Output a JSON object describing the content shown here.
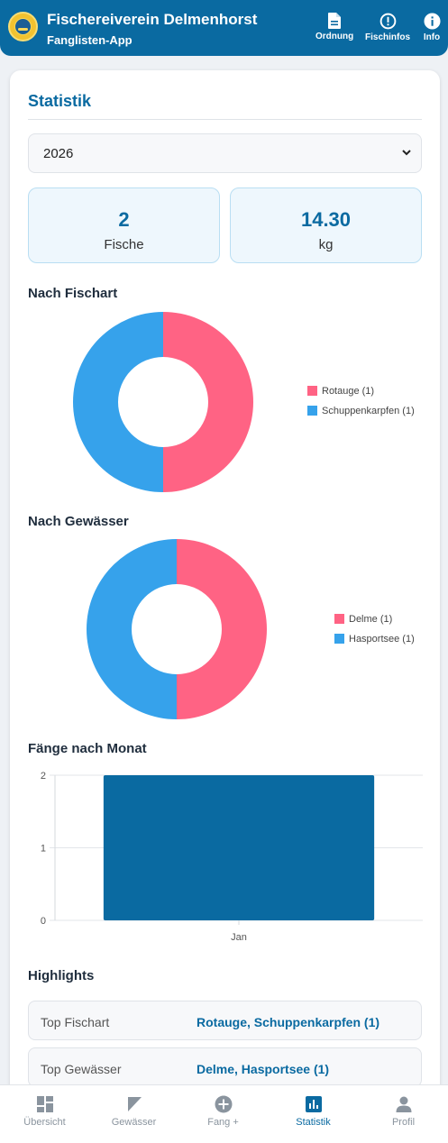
{
  "header": {
    "title": "Fischereiverein Delmenhorst",
    "subtitle": "Fanglisten-App",
    "actions": [
      {
        "label": "Ordnung",
        "icon": "document-icon"
      },
      {
        "label": "Fischinfos",
        "icon": "alert-circle-icon"
      },
      {
        "label": "Info",
        "icon": "info-icon"
      }
    ]
  },
  "statistik": {
    "title": "Statistik",
    "year": "2026",
    "stats": [
      {
        "value": "2",
        "label": "Fische"
      },
      {
        "value": "14.30",
        "label": "kg"
      }
    ]
  },
  "sections": {
    "species": "Nach Fischart",
    "waters": "Nach Gewässer",
    "monthly": "Fänge nach Monat",
    "highlights": "Highlights"
  },
  "chart_data": [
    {
      "type": "pie",
      "title": "Nach Fischart",
      "labels": [
        "Rotauge (1)",
        "Schuppenkarpfen (1)"
      ],
      "values": [
        1,
        1
      ],
      "colors": [
        "#ff6384",
        "#36a2eb"
      ],
      "legend_position": "right"
    },
    {
      "type": "pie",
      "title": "Nach Gewässer",
      "labels": [
        "Delme (1)",
        "Hasportsee (1)"
      ],
      "values": [
        1,
        1
      ],
      "colors": [
        "#ff6384",
        "#36a2eb"
      ],
      "legend_position": "right"
    },
    {
      "type": "bar",
      "title": "Fänge nach Monat",
      "categories": [
        "Jan"
      ],
      "values": [
        2
      ],
      "ylim": [
        0,
        2
      ],
      "yticks": [
        "0",
        "1",
        "2"
      ],
      "color": "#0a6aa1",
      "grid": true
    }
  ],
  "highlights": [
    {
      "label": "Top Fischart",
      "value": "Rotauge, Schuppenkarpfen (1)"
    },
    {
      "label": "Top Gewässer",
      "value": "Delme, Hasportsee (1)"
    }
  ],
  "nav": {
    "items": [
      {
        "label": "Übersicht",
        "icon": "dashboard-icon"
      },
      {
        "label": "Gewässer",
        "icon": "flag-icon"
      },
      {
        "label": "Fang +",
        "icon": "add-circle-icon"
      },
      {
        "label": "Statistik",
        "icon": "bar-chart-icon",
        "active": true
      },
      {
        "label": "Profil",
        "icon": "person-icon"
      }
    ]
  }
}
